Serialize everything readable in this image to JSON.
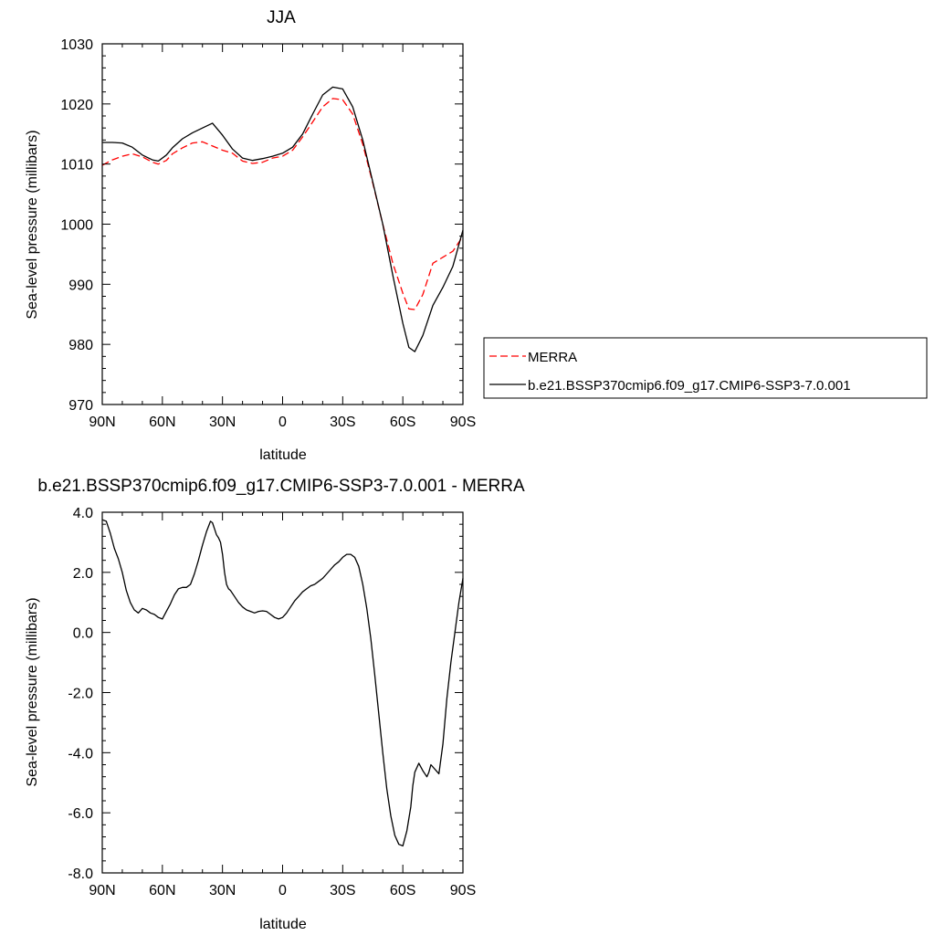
{
  "chart_data": [
    {
      "type": "line",
      "title": "JJA",
      "xlabel": "latitude",
      "ylabel": "Sea-level pressure (millibars)",
      "xlim": [
        90,
        -90
      ],
      "ylim": [
        970,
        1030
      ],
      "x_ticks": [
        90,
        60,
        30,
        0,
        -30,
        -60,
        -90
      ],
      "x_tick_labels": [
        "90N",
        "60N",
        "30N",
        "0",
        "30S",
        "60S",
        "90S"
      ],
      "y_ticks": [
        970,
        980,
        990,
        1000,
        1010,
        1020,
        1030
      ],
      "y_tick_labels": [
        "970",
        "980",
        "990",
        "1000",
        "1010",
        "1020",
        "1030"
      ],
      "grid": false,
      "legend_position": "right",
      "series": [
        {
          "name": "MERRA",
          "color": "#ff0000",
          "dash": "dashed",
          "x": [
            90,
            85,
            80,
            75,
            70,
            65,
            62,
            58,
            55,
            50,
            45,
            40,
            35,
            30,
            25,
            20,
            15,
            10,
            5,
            0,
            -5,
            -10,
            -15,
            -20,
            -25,
            -30,
            -35,
            -40,
            -45,
            -50,
            -55,
            -60,
            -63,
            -66,
            -70,
            -75,
            -80,
            -85,
            -90
          ],
          "y": [
            1009.8,
            1010.7,
            1011.3,
            1011.7,
            1011.2,
            1010.3,
            1010.0,
            1010.6,
            1011.7,
            1012.7,
            1013.5,
            1013.7,
            1013.0,
            1012.3,
            1011.8,
            1010.5,
            1010.1,
            1010.3,
            1011.0,
            1011.3,
            1012.3,
            1014.5,
            1017.0,
            1019.5,
            1020.9,
            1020.7,
            1018.3,
            1013.3,
            1006.8,
            1000.0,
            993.5,
            988.5,
            985.9,
            985.8,
            988.3,
            993.5,
            994.5,
            995.5,
            998.0
          ]
        },
        {
          "name": "b.e21.BSSP370cmip6.f09_g17.CMIP6-SSP3-7.0.001",
          "color": "#000000",
          "dash": "solid",
          "x": [
            90,
            85,
            80,
            75,
            70,
            65,
            62,
            58,
            55,
            50,
            45,
            40,
            35,
            30,
            25,
            20,
            15,
            10,
            5,
            0,
            -5,
            -10,
            -15,
            -20,
            -25,
            -30,
            -35,
            -40,
            -45,
            -50,
            -55,
            -60,
            -63,
            -66,
            -70,
            -75,
            -80,
            -85,
            -90
          ],
          "y": [
            1013.6,
            1013.6,
            1013.5,
            1012.8,
            1011.5,
            1010.7,
            1010.5,
            1011.5,
            1012.7,
            1014.2,
            1015.2,
            1016.0,
            1016.8,
            1014.8,
            1012.5,
            1011.0,
            1010.6,
            1010.9,
            1011.3,
            1011.8,
            1012.8,
            1015.0,
            1018.3,
            1021.5,
            1022.8,
            1022.5,
            1019.5,
            1014.0,
            1007.0,
            1000.0,
            991.5,
            983.5,
            979.5,
            978.8,
            981.5,
            986.5,
            989.5,
            993.0,
            999.0
          ]
        }
      ]
    },
    {
      "type": "line",
      "title": "b.e21.BSSP370cmip6.f09_g17.CMIP6-SSP3-7.0.001 - MERRA",
      "xlabel": "latitude",
      "ylabel": "Sea-level pressure (millibars)",
      "xlim": [
        90,
        -90
      ],
      "ylim": [
        -8,
        4
      ],
      "x_ticks": [
        90,
        60,
        30,
        0,
        -30,
        -60,
        -90
      ],
      "x_tick_labels": [
        "90N",
        "60N",
        "30N",
        "0",
        "30S",
        "60S",
        "90S"
      ],
      "y_ticks": [
        -8,
        -6,
        -4,
        -2,
        0,
        2,
        4
      ],
      "y_tick_labels": [
        "-8.0",
        "-6.0",
        "-4.0",
        "-2.0",
        "0.0",
        "2.0",
        "4.0"
      ],
      "grid": false,
      "series": [
        {
          "color": "#000000",
          "dash": "solid",
          "x": [
            90,
            88,
            86,
            84,
            82,
            80,
            78,
            76,
            74,
            72,
            70,
            68,
            66,
            64,
            62,
            60,
            58,
            56,
            54,
            52,
            50,
            48,
            46,
            44,
            42,
            40,
            38,
            36,
            35,
            34,
            33,
            32,
            31,
            30,
            29,
            28,
            27,
            26,
            24,
            22,
            20,
            18,
            16,
            14,
            12,
            10,
            8,
            6,
            4,
            2,
            0,
            -2,
            -4,
            -6,
            -8,
            -10,
            -12,
            -14,
            -16,
            -18,
            -20,
            -22,
            -24,
            -26,
            -28,
            -30,
            -32,
            -34,
            -36,
            -38,
            -40,
            -42,
            -44,
            -46,
            -48,
            -50,
            -52,
            -54,
            -56,
            -58,
            -60,
            -62,
            -64,
            -65,
            -66,
            -68,
            -70,
            -72,
            -73,
            -74,
            -76,
            -78,
            -80,
            -82,
            -84,
            -86,
            -88,
            -90
          ],
          "y": [
            3.75,
            3.7,
            3.3,
            2.8,
            2.45,
            2.0,
            1.4,
            1.0,
            0.75,
            0.65,
            0.8,
            0.75,
            0.65,
            0.6,
            0.5,
            0.45,
            0.7,
            0.95,
            1.25,
            1.45,
            1.5,
            1.5,
            1.6,
            1.95,
            2.4,
            2.9,
            3.35,
            3.7,
            3.65,
            3.45,
            3.25,
            3.15,
            3.0,
            2.6,
            2.0,
            1.6,
            1.45,
            1.4,
            1.2,
            1.0,
            0.85,
            0.75,
            0.7,
            0.65,
            0.7,
            0.72,
            0.7,
            0.6,
            0.5,
            0.45,
            0.5,
            0.65,
            0.85,
            1.05,
            1.2,
            1.35,
            1.45,
            1.55,
            1.6,
            1.7,
            1.8,
            1.95,
            2.1,
            2.25,
            2.35,
            2.5,
            2.6,
            2.6,
            2.5,
            2.2,
            1.6,
            0.8,
            -0.2,
            -1.4,
            -2.7,
            -4.0,
            -5.2,
            -6.1,
            -6.75,
            -7.05,
            -7.1,
            -6.6,
            -5.8,
            -5.1,
            -4.65,
            -4.35,
            -4.6,
            -4.8,
            -4.65,
            -4.4,
            -4.55,
            -4.7,
            -3.7,
            -2.2,
            -1.0,
            0.0,
            1.0,
            1.8
          ]
        }
      ]
    }
  ]
}
